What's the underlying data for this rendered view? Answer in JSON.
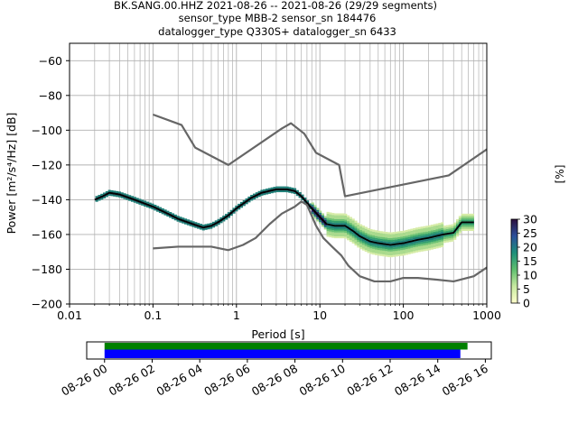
{
  "chart_data": [
    {
      "type": "heatmap",
      "title_lines": [
        "BK.SANG.00.HHZ   2021-08-26 -- 2021-08-26  (29/29 segments)",
        "sensor_type MBB-2 sensor_sn 184476",
        "datalogger_type Q330S+ datalogger_sn 6433"
      ],
      "xlabel": "Period [s]",
      "ylabel": "Power [m²/s⁴/Hz] [dB]",
      "xscale": "log",
      "xlim": [
        0.01,
        1000
      ],
      "ylim": [
        -200,
        -50
      ],
      "grid": true,
      "x_ticks": [
        0.01,
        0.1,
        1,
        10,
        100,
        1000
      ],
      "x_tick_labels": [
        "0.01",
        "0.1",
        "1",
        "10",
        "100",
        "1000"
      ],
      "y_ticks": [
        -200,
        -180,
        -160,
        -140,
        -120,
        -100,
        -80,
        -60
      ],
      "y_tick_labels": [
        "−200",
        "−180",
        "−160",
        "−140",
        "−120",
        "−100",
        "−80",
        "−60"
      ],
      "colorbar": {
        "label": "[%]",
        "range": [
          0,
          30
        ],
        "ticks": [
          0,
          5,
          10,
          15,
          20,
          25,
          30
        ],
        "tick_labels": [
          "0",
          "5",
          "10",
          "15",
          "20",
          "25",
          "30"
        ]
      },
      "series": [
        {
          "color": "#000000",
          "points": [
            [
              0.02,
              -140
            ],
            [
              0.025,
              -138
            ],
            [
              0.03,
              -136
            ],
            [
              0.04,
              -137
            ],
            [
              0.06,
              -140
            ],
            [
              0.1,
              -144
            ],
            [
              0.15,
              -148
            ],
            [
              0.2,
              -151
            ],
            [
              0.3,
              -154
            ],
            [
              0.4,
              -156
            ],
            [
              0.5,
              -155
            ],
            [
              0.6,
              -153
            ],
            [
              0.8,
              -149
            ],
            [
              1,
              -145
            ],
            [
              1.5,
              -139
            ],
            [
              2,
              -136
            ],
            [
              3,
              -134
            ],
            [
              4,
              -134
            ],
            [
              5,
              -135
            ],
            [
              6,
              -138
            ],
            [
              8,
              -145
            ],
            [
              10,
              -150
            ],
            [
              12,
              -154
            ],
            [
              15,
              -155
            ],
            [
              20,
              -155
            ],
            [
              25,
              -158
            ],
            [
              30,
              -161
            ],
            [
              40,
              -164
            ],
            [
              50,
              -165
            ],
            [
              70,
              -166
            ],
            [
              100,
              -165
            ],
            [
              150,
              -163
            ],
            [
              200,
              -162
            ],
            [
              300,
              -160
            ],
            [
              400,
              -159
            ],
            [
              500,
              -153
            ],
            [
              700,
              -153
            ]
          ]
        },
        {
          "color": "#666666",
          "points": [
            [
              0.1,
              -91
            ],
            [
              0.22,
              -97
            ],
            [
              0.32,
              -110
            ],
            [
              0.8,
              -120
            ],
            [
              3.5,
              -99
            ],
            [
              4.5,
              -96
            ],
            [
              6.5,
              -102
            ],
            [
              9,
              -113
            ],
            [
              17,
              -120
            ],
            [
              20,
              -138
            ],
            [
              350,
              -126
            ],
            [
              1000,
              -111
            ]
          ]
        },
        {
          "color": "#666666",
          "points": [
            [
              0.1,
              -168
            ],
            [
              0.2,
              -167
            ],
            [
              0.5,
              -167
            ],
            [
              0.8,
              -169
            ],
            [
              1.2,
              -166
            ],
            [
              1.7,
              -162
            ],
            [
              2.5,
              -154
            ],
            [
              3.5,
              -148
            ],
            [
              5,
              -144
            ],
            [
              6,
              -141
            ],
            [
              7,
              -143
            ],
            [
              9,
              -155
            ],
            [
              11,
              -162
            ],
            [
              14,
              -167
            ],
            [
              18,
              -172
            ],
            [
              22,
              -178
            ],
            [
              30,
              -184
            ],
            [
              45,
              -187
            ],
            [
              70,
              -187
            ],
            [
              100,
              -185
            ],
            [
              150,
              -185
            ],
            [
              250,
              -186
            ],
            [
              400,
              -187
            ],
            [
              700,
              -184
            ],
            [
              1000,
              -179
            ]
          ]
        }
      ]
    },
    {
      "type": "bar",
      "x_tick_labels": [
        "08-26 00",
        "08-26 02",
        "08-26 04",
        "08-26 06",
        "08-26 08",
        "08-26 10",
        "08-26 12",
        "08-26 14",
        "08-26 16"
      ],
      "x_ticks_hours": [
        0,
        2,
        4,
        6,
        8,
        10,
        12,
        14,
        16
      ],
      "xlim_hours": [
        -0.75,
        16.25
      ],
      "series": [
        {
          "color": "#008000",
          "start_hour": 0,
          "end_hour": 15.25
        },
        {
          "color": "#0000ff",
          "start_hour": 0,
          "end_hour": 14.95
        }
      ]
    }
  ]
}
